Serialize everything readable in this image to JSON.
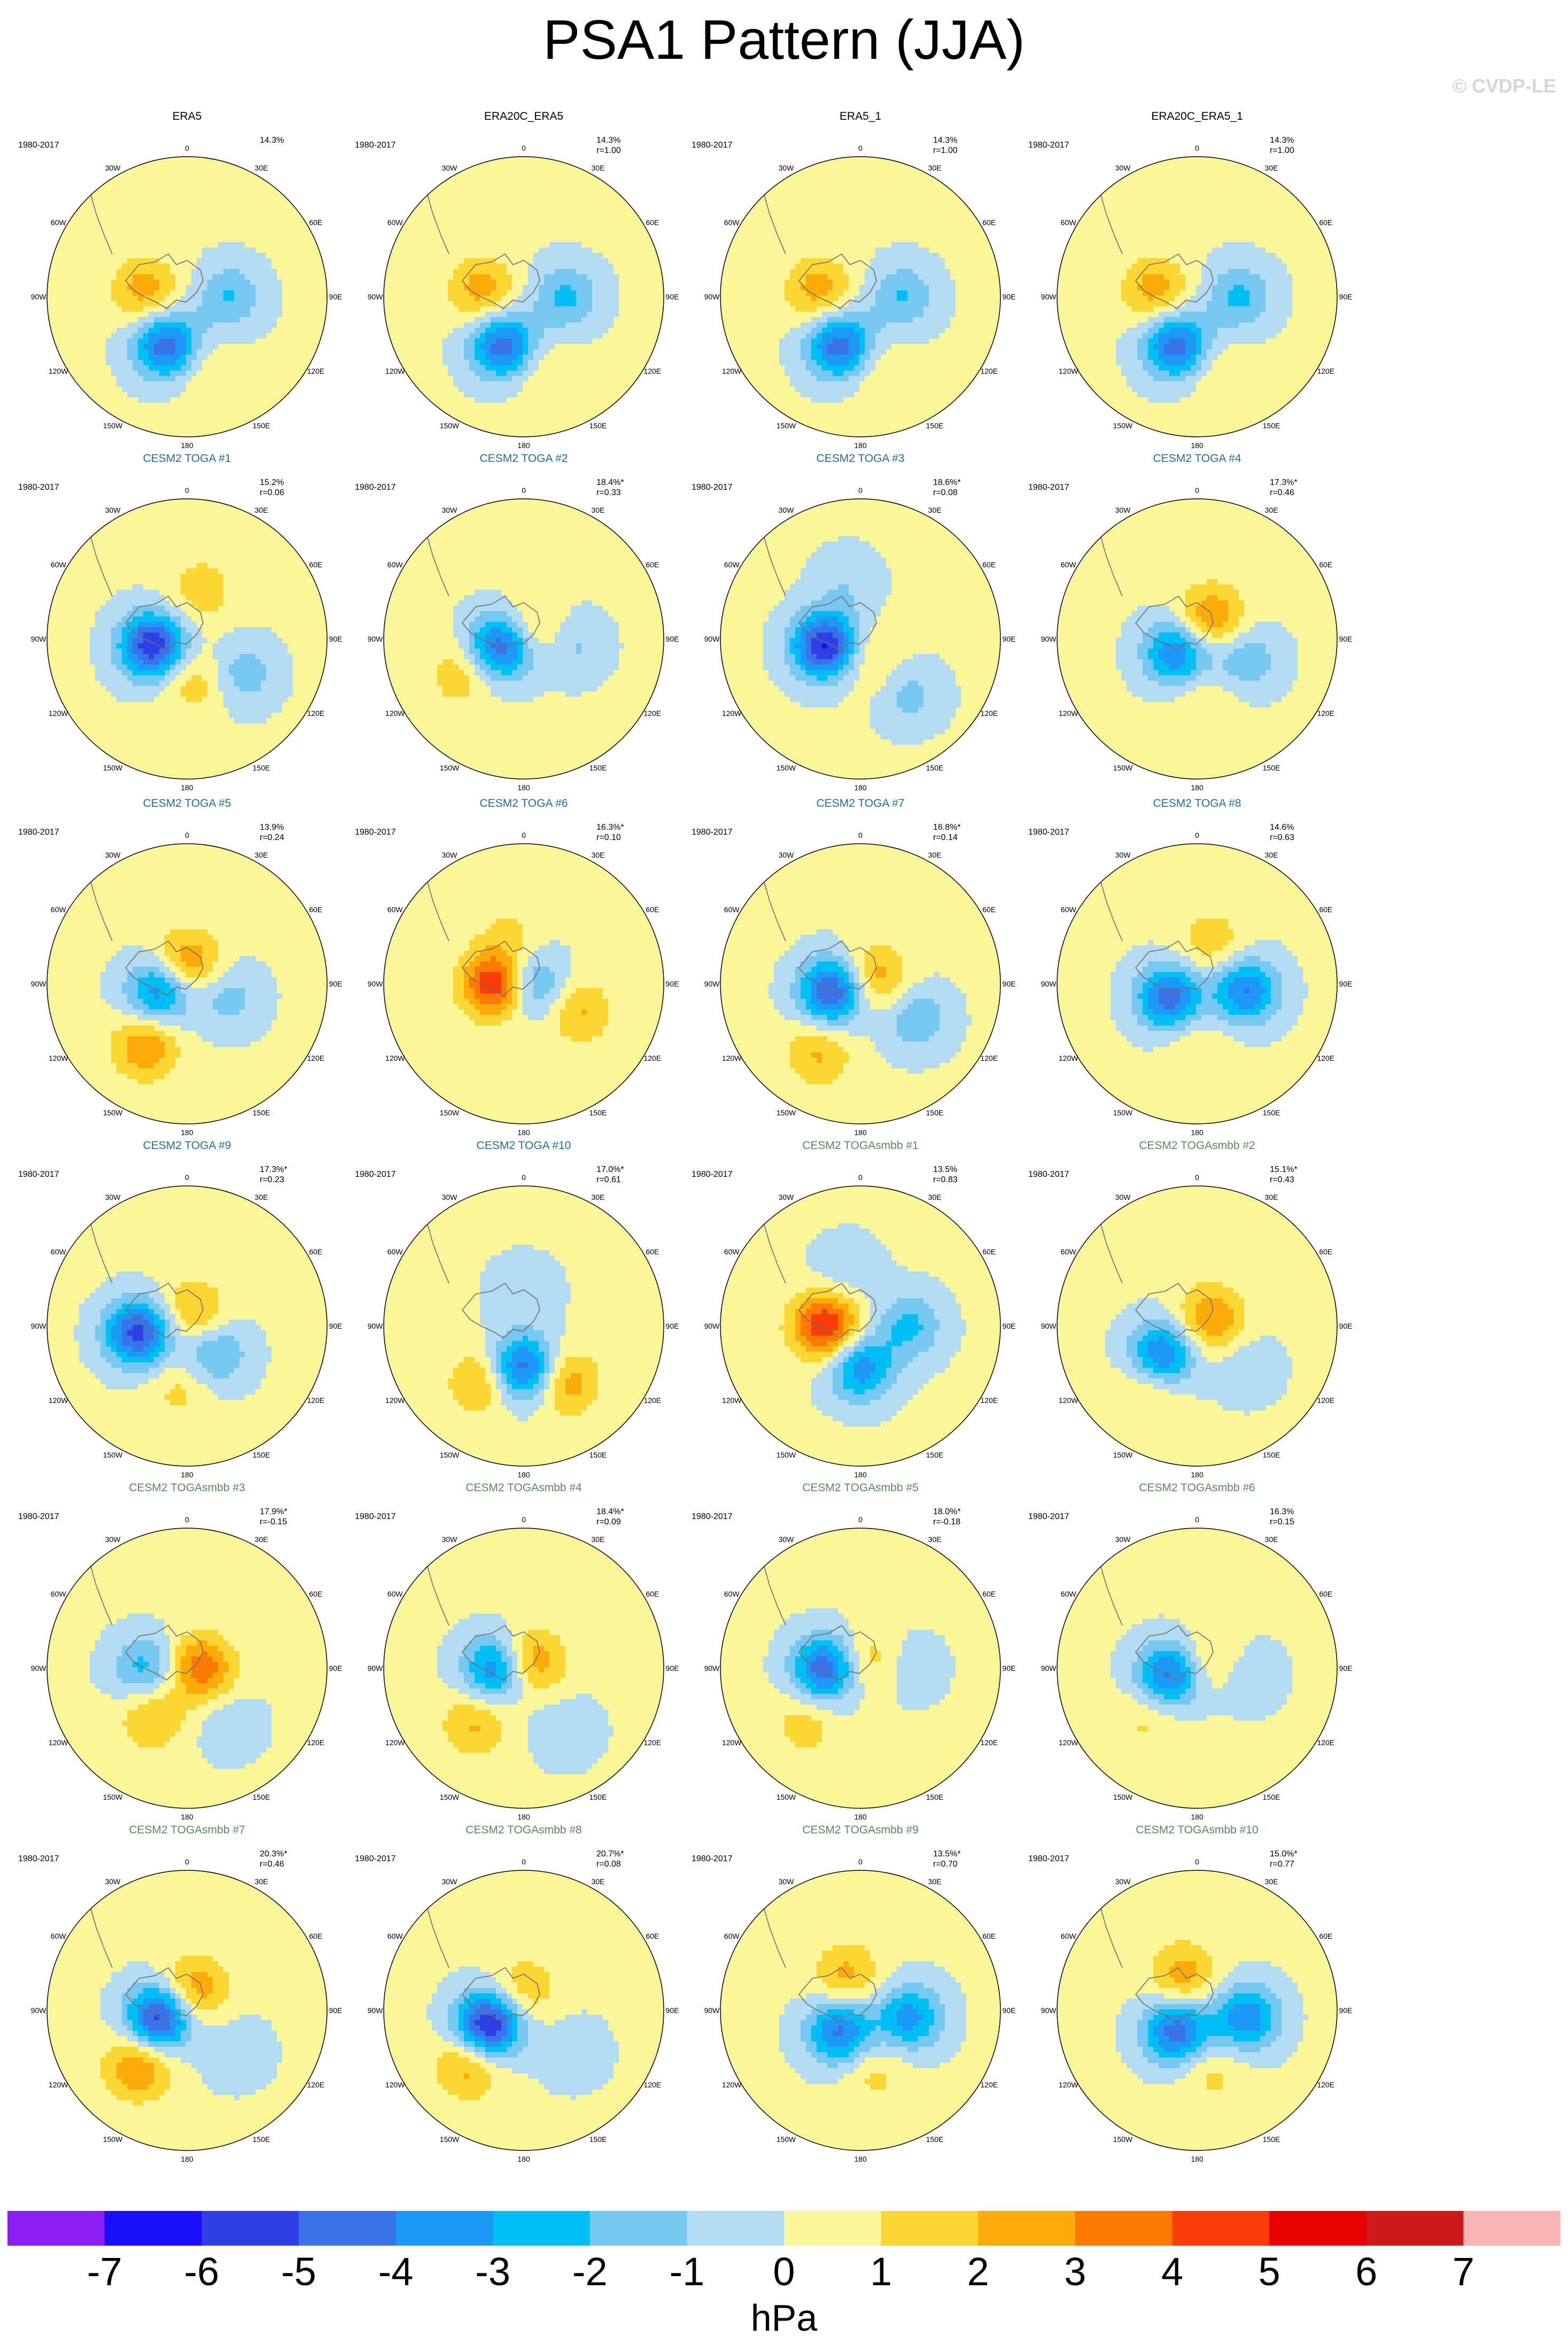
{
  "title": "PSA1 Pattern (JJA)",
  "watermark": "© CVDP-LE",
  "colors": {
    "obs_title": "#000000",
    "toga_title": "#1f6f9a",
    "togasmbb_title": "#5a8a5a",
    "coastline": "#6e6e6e"
  },
  "chart_data": {
    "type": "contour-map-grid",
    "projection": "south-polar-stereographic",
    "panels": [
      {
        "name": "ERA5",
        "group": "obs",
        "period": "1980-2017",
        "pct": "14.3%",
        "r": ""
      },
      {
        "name": "ERA20C_ERA5",
        "group": "obs",
        "period": "1980-2017",
        "pct": "14.3%",
        "r": "r=1.00"
      },
      {
        "name": "ERA5_1",
        "group": "obs",
        "period": "1980-2017",
        "pct": "14.3%",
        "r": "r=1.00"
      },
      {
        "name": "ERA20C_ERA5_1",
        "group": "obs",
        "period": "1980-2017",
        "pct": "14.3%",
        "r": "r=1.00"
      },
      {
        "name": "CESM2 TOGA #1",
        "group": "toga",
        "period": "1980-2017",
        "pct": "15.2%",
        "r": "r=0.06"
      },
      {
        "name": "CESM2 TOGA #2",
        "group": "toga",
        "period": "1980-2017",
        "pct": "18.4%*",
        "r": "r=0.33"
      },
      {
        "name": "CESM2 TOGA #3",
        "group": "toga",
        "period": "1980-2017",
        "pct": "18.6%*",
        "r": "r=0.08"
      },
      {
        "name": "CESM2 TOGA #4",
        "group": "toga",
        "period": "1980-2017",
        "pct": "17.3%*",
        "r": "r=0.46"
      },
      {
        "name": "CESM2 TOGA #5",
        "group": "toga",
        "period": "1980-2017",
        "pct": "13.9%",
        "r": "r=0.24"
      },
      {
        "name": "CESM2 TOGA #6",
        "group": "toga",
        "period": "1980-2017",
        "pct": "16.3%*",
        "r": "r=0.10"
      },
      {
        "name": "CESM2 TOGA #7",
        "group": "toga",
        "period": "1980-2017",
        "pct": "16.8%*",
        "r": "r=0.14"
      },
      {
        "name": "CESM2 TOGA #8",
        "group": "toga",
        "period": "1980-2017",
        "pct": "14.6%",
        "r": "r=0.63"
      },
      {
        "name": "CESM2 TOGA #9",
        "group": "toga",
        "period": "1980-2017",
        "pct": "17.3%*",
        "r": "r=0.23"
      },
      {
        "name": "CESM2 TOGA #10",
        "group": "toga",
        "period": "1980-2017",
        "pct": "17.0%*",
        "r": "r=0.61"
      },
      {
        "name": "CESM2 TOGAsmbb #1",
        "group": "togasmbb",
        "period": "1980-2017",
        "pct": "13.5%",
        "r": "r=0.83"
      },
      {
        "name": "CESM2 TOGAsmbb #2",
        "group": "togasmbb",
        "period": "1980-2017",
        "pct": "15.1%*",
        "r": "r=0.43"
      },
      {
        "name": "CESM2 TOGAsmbb #3",
        "group": "togasmbb",
        "period": "1980-2017",
        "pct": "17.9%*",
        "r": "r=-0.15"
      },
      {
        "name": "CESM2 TOGAsmbb #4",
        "group": "togasmbb",
        "period": "1980-2017",
        "pct": "18.4%*",
        "r": "r=0.09"
      },
      {
        "name": "CESM2 TOGAsmbb #5",
        "group": "togasmbb",
        "period": "1980-2017",
        "pct": "18.0%*",
        "r": "r=-0.18"
      },
      {
        "name": "CESM2 TOGAsmbb #6",
        "group": "togasmbb",
        "period": "1980-2017",
        "pct": "16.3%",
        "r": "r=0.15"
      },
      {
        "name": "CESM2 TOGAsmbb #7",
        "group": "togasmbb",
        "period": "1980-2017",
        "pct": "20.3%*",
        "r": "r=0.46"
      },
      {
        "name": "CESM2 TOGAsmbb #8",
        "group": "togasmbb",
        "period": "1980-2017",
        "pct": "20.7%*",
        "r": "r=0.08"
      },
      {
        "name": "CESM2 TOGAsmbb #9",
        "group": "togasmbb",
        "period": "1980-2017",
        "pct": "13.5%*",
        "r": "r=0.70"
      },
      {
        "name": "CESM2 TOGAsmbb #10",
        "group": "togasmbb",
        "period": "1980-2017",
        "pct": "15.0%*",
        "r": "r=0.77"
      }
    ],
    "longitude_labels": [
      "0",
      "30E",
      "60E",
      "90E",
      "120E",
      "150E",
      "180",
      "150W",
      "120W",
      "90W",
      "60W",
      "30W"
    ],
    "colorbar": {
      "levels": [
        -7,
        -6,
        -5,
        -4,
        -3,
        -2,
        -1,
        0,
        1,
        2,
        3,
        4,
        5,
        6,
        7
      ],
      "colors": [
        "#8a1ef0",
        "#1a0dfa",
        "#2e3fe6",
        "#3a73e8",
        "#1e98f5",
        "#00bff5",
        "#76c8f0",
        "#b3dcf2",
        "#fbf59a",
        "#fcd632",
        "#fcab0a",
        "#fc7a02",
        "#fa3c0a",
        "#e60000",
        "#cc1a1a",
        "#fbb4b4"
      ],
      "units": "hPa"
    }
  }
}
